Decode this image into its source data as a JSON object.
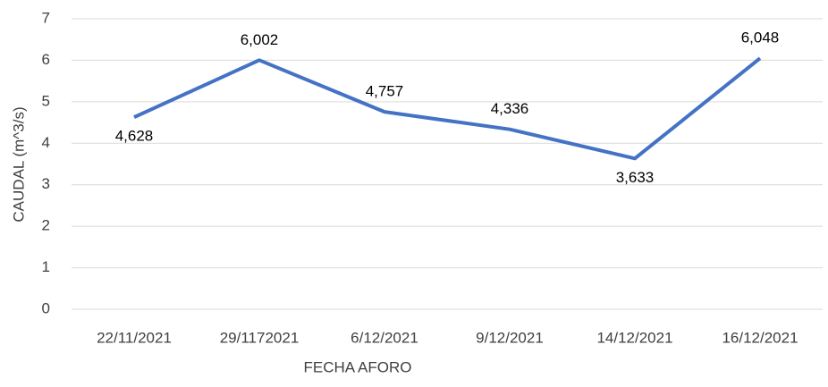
{
  "chart_data": {
    "type": "line",
    "categories": [
      "22/11/2021",
      "29/1172021",
      "6/12/2021",
      "9/12/2021",
      "14/12/2021",
      "16/12/2021"
    ],
    "series": [
      {
        "color": "#4472c4",
        "values": [
          4.628,
          6.002,
          4.757,
          4.336,
          3.633,
          6.048
        ],
        "value_labels": [
          "4,628",
          "6,002",
          "4,757",
          "4,336",
          "3,633",
          "6,048"
        ]
      }
    ],
    "ylim": [
      0,
      7
    ],
    "yticks": [
      0,
      1,
      2,
      3,
      4,
      5,
      6,
      7
    ],
    "grid": true,
    "y_label": "CAUDAL (m^3/s)",
    "x_label": "FECHA AFORO"
  }
}
